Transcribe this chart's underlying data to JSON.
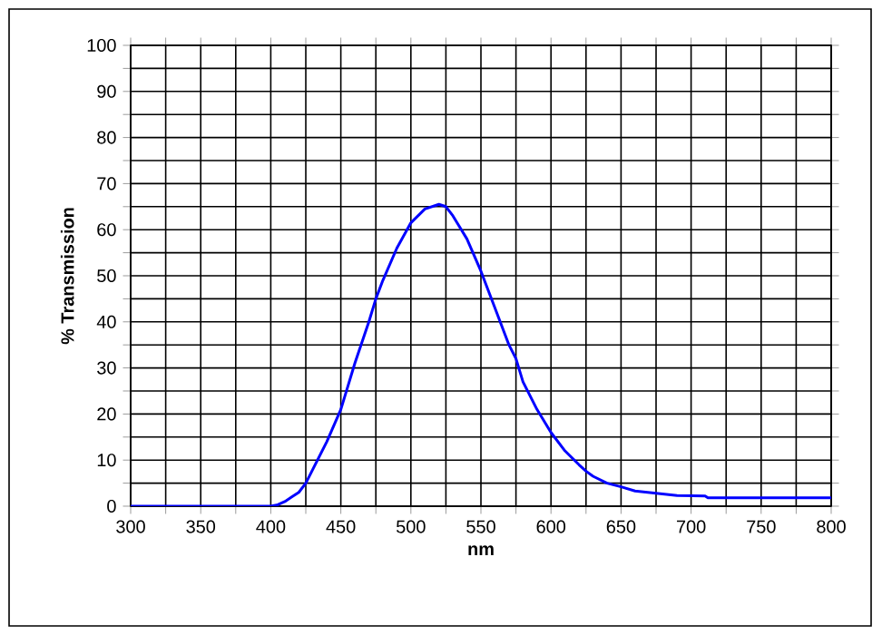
{
  "chart_data": {
    "type": "line",
    "xlabel": "nm",
    "ylabel": "% Transmission",
    "x": [
      300,
      350,
      400,
      405,
      410,
      415,
      420,
      425,
      430,
      440,
      450,
      460,
      470,
      475,
      480,
      490,
      500,
      510,
      520,
      525,
      530,
      540,
      550,
      560,
      570,
      575,
      580,
      590,
      600,
      610,
      620,
      625,
      630,
      640,
      650,
      660,
      675,
      690,
      710,
      712,
      750,
      800
    ],
    "series": [
      {
        "color": "#0000ff",
        "values": [
          0,
          0,
          0,
          0.3,
          1,
          2,
          3,
          5,
          8,
          14,
          21,
          31,
          40,
          45,
          49,
          56,
          61.5,
          64.5,
          65.5,
          65,
          63,
          58,
          51,
          43,
          35,
          32,
          27,
          21,
          16,
          12,
          9,
          7.6,
          6.5,
          5,
          4.2,
          3.3,
          2.8,
          2.3,
          2.2,
          1.8,
          1.8,
          1.8
        ]
      }
    ],
    "xlim": [
      300,
      800
    ],
    "ylim": [
      0,
      100
    ],
    "xticks": [
      300,
      {
        "value": 325,
        "label": null
      },
      350,
      {
        "value": 375,
        "label": null
      },
      400,
      {
        "value": 425,
        "label": null
      },
      450,
      {
        "value": 475,
        "label": null
      },
      500,
      {
        "value": 525,
        "label": null
      },
      550,
      {
        "value": 575,
        "label": null
      },
      600,
      {
        "value": 625,
        "label": null
      },
      650,
      {
        "value": 675,
        "label": null
      },
      700,
      {
        "value": 725,
        "label": null
      },
      750,
      {
        "value": 775,
        "label": null
      },
      800
    ],
    "yticks": [
      0,
      {
        "value": 5,
        "label": null
      },
      10,
      {
        "value": 15,
        "label": null
      },
      20,
      {
        "value": 25,
        "label": null
      },
      30,
      {
        "value": 35,
        "label": null
      },
      40,
      {
        "value": 45,
        "label": null
      },
      50,
      {
        "value": 55,
        "label": null
      },
      60,
      {
        "value": 65,
        "label": null
      },
      70,
      {
        "value": 75,
        "label": null
      },
      80,
      {
        "value": 85,
        "label": null
      },
      90,
      {
        "value": 95,
        "label": null
      },
      100
    ],
    "grid": true,
    "marker": "none",
    "line_style": "solid"
  }
}
